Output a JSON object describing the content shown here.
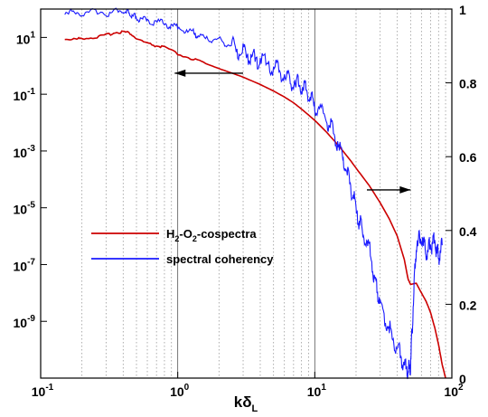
{
  "chart_data": {
    "type": "line",
    "xscale": "log",
    "yscale_left": "log",
    "xlim": [
      0.1,
      100
    ],
    "ylim_left": [
      1e-11,
      100
    ],
    "ylim_right": [
      0,
      1
    ],
    "xlabel": {
      "main": "kδ",
      "sub": "L"
    },
    "x_ticks": [
      {
        "base": "10",
        "exp": "-1",
        "value": 0.1
      },
      {
        "base": "10",
        "exp": "0",
        "value": 1
      },
      {
        "base": "10",
        "exp": "1",
        "value": 10
      },
      {
        "base": "10",
        "exp": "2",
        "value": 100
      }
    ],
    "y_left_ticks": [
      {
        "base": "10",
        "exp": "1",
        "value": 10
      },
      {
        "base": "10",
        "exp": "-1",
        "value": 0.1
      },
      {
        "base": "10",
        "exp": "-3",
        "value": 0.001
      },
      {
        "base": "10",
        "exp": "-5",
        "value": 1e-05
      },
      {
        "base": "10",
        "exp": "-7",
        "value": 1e-07
      },
      {
        "base": "10",
        "exp": "-9",
        "value": 1e-09
      }
    ],
    "y_right_ticks": [
      "0",
      "0.2",
      "0.4",
      "0.6",
      "0.8",
      "1"
    ],
    "y_right_tick_values": [
      0,
      0.2,
      0.4,
      0.6,
      0.8,
      1
    ],
    "grid": {
      "x_major": true,
      "x_minor_dotted": true,
      "y": false
    },
    "legend": {
      "placement": "lower-left",
      "entries": [
        {
          "parts": [
            {
              "t": "H"
            },
            {
              "t": "2",
              "sub": true
            },
            {
              "t": "-O"
            },
            {
              "t": "2",
              "sub": true
            },
            {
              "t": "-cospectra"
            }
          ],
          "color": "#cc0000"
        },
        {
          "parts": [
            {
              "t": "spectral coherency"
            }
          ],
          "color": "#1a1aff"
        }
      ]
    },
    "series": [
      {
        "axis": "left",
        "color": "#cc0000",
        "x": [
          0.15,
          0.18,
          0.2,
          0.25,
          0.3,
          0.35,
          0.4,
          0.45,
          0.5,
          0.6,
          0.7,
          0.8,
          1.0,
          1.3,
          1.6,
          2.0,
          2.5,
          3.0,
          4.0,
          5.0,
          6.0,
          7.0,
          8.0,
          10.0,
          12.0,
          15.0,
          18.0,
          20.0,
          25.0,
          30.0,
          35.0,
          40.0,
          45.0,
          48.0,
          50.0,
          55.0,
          60.0,
          65.0,
          70.0,
          75.0,
          80.0,
          85.0,
          90.0
        ],
        "y": [
          9,
          8.5,
          9.5,
          10,
          12,
          15,
          16,
          14,
          9,
          6,
          5,
          4.5,
          2.6,
          1.7,
          1.2,
          0.8,
          0.55,
          0.4,
          0.22,
          0.13,
          0.08,
          0.05,
          0.03,
          0.012,
          0.005,
          0.0015,
          0.0005,
          0.00025,
          6e-05,
          1.5e-05,
          4e-06,
          1e-06,
          1.5e-07,
          3e-08,
          2e-08,
          2.2e-08,
          1e-08,
          5e-09,
          2e-09,
          6e-10,
          1.5e-10,
          3e-11,
          1e-11
        ]
      },
      {
        "axis": "right",
        "color": "#1a1aff",
        "x": [
          0.15,
          0.2,
          0.3,
          0.4,
          0.45,
          0.5,
          0.6,
          0.8,
          1.0,
          1.3,
          1.5,
          2.0,
          2.5,
          3.0,
          3.5,
          4.0,
          5.0,
          6.0,
          7.0,
          8.0,
          9.0,
          10.0,
          12.0,
          14.0,
          16.0,
          18.0,
          20.0,
          22.0,
          25.0,
          28.0,
          30.0,
          35.0,
          40.0,
          45.0,
          48.0,
          50.0,
          52.0,
          55.0,
          60.0,
          65.0,
          70.0,
          75.0,
          80.0,
          85.0
        ],
        "y": [
          0.99,
          0.99,
          0.99,
          0.995,
          0.985,
          0.975,
          0.97,
          0.96,
          0.95,
          0.935,
          0.925,
          0.915,
          0.9,
          0.88,
          0.87,
          0.86,
          0.845,
          0.82,
          0.8,
          0.79,
          0.77,
          0.74,
          0.71,
          0.66,
          0.6,
          0.53,
          0.46,
          0.4,
          0.35,
          0.25,
          0.2,
          0.13,
          0.08,
          0.04,
          0.02,
          0.04,
          0.18,
          0.36,
          0.38,
          0.34,
          0.36,
          0.37,
          0.33,
          0.36
        ]
      }
    ],
    "annotations": [
      {
        "type": "arrow",
        "axis": "left",
        "from": [
          3.0,
          0.55
        ],
        "to": [
          0.95,
          0.55
        ],
        "color": "#000000"
      },
      {
        "type": "arrow",
        "axis": "right",
        "from": [
          24.0,
          0.51
        ],
        "to": [
          50.0,
          0.51
        ],
        "color": "#000000"
      }
    ]
  }
}
